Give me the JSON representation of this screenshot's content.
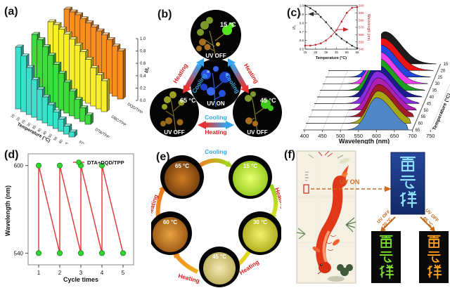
{
  "panels": {
    "a": {
      "label": "(a)"
    },
    "b": {
      "label": "(b)",
      "top": {
        "temp": "15 °C",
        "uv": "UV OFF"
      },
      "center": {
        "uv": "UV ON"
      },
      "left": {
        "temp": "65 °C",
        "uv": "UV OFF"
      },
      "right": {
        "temp": "45 °C",
        "uv": "UV OFF"
      },
      "arrow_left": {
        "outer": "Heating",
        "inner": "Cooling"
      },
      "arrow_right": {
        "outer": "Heating",
        "inner": "Cooling"
      },
      "arrow_bottom": {
        "upper": "Cooling",
        "lower": "Heating"
      },
      "colors": {
        "heating": "#dd2020",
        "cooling": "#2fa8e8"
      }
    },
    "c": {
      "label": "(c)"
    },
    "d": {
      "label": "(d)"
    },
    "e": {
      "label": "(e)",
      "node_65": "65 °C",
      "node_15": "15 °C",
      "node_30": "30 °C",
      "node_45": "45 °C",
      "node_60": "60 °C",
      "arrow_cooling": "Cooling",
      "arrow_heating_1": "Heating",
      "arrow_heating_2": "Heating",
      "arrow_heating_3": "Heating",
      "arrow_heating_4": "Heating",
      "colors": {
        "heating": "#dd2020",
        "cooling": "#2fa8e8"
      }
    },
    "f": {
      "label": "(f)",
      "uv_on": "UV ON",
      "left_arrow_line1": "UV OFF",
      "left_arrow_line2": "20 °C",
      "right_arrow_line1": "UV OFF",
      "right_arrow_line2": "65 °C",
      "calligraphy_text": "雷云祥"
    }
  },
  "chart_data": [
    {
      "panel": "a",
      "type": "bar",
      "projection": "3d",
      "categories": [
        15,
        20,
        25,
        30,
        35,
        40,
        45,
        50,
        55,
        60,
        65
      ],
      "xlabel": "Temperature (°C)",
      "zlabel": "I/I₀",
      "zlim": [
        0.0,
        1.0
      ],
      "zticks": [
        0.0,
        0.2,
        0.4,
        0.6,
        0.8,
        1.0
      ],
      "series": [
        {
          "name": "FDA/TPP",
          "color": "#3be0cb",
          "values": [
            1.0,
            0.9,
            0.76,
            0.61,
            0.5,
            0.42,
            0.34,
            0.27,
            0.2,
            0.13,
            0.08
          ]
        },
        {
          "name": "DTA/TPP",
          "color": "#3cdc3c",
          "values": [
            1.0,
            0.96,
            0.89,
            0.8,
            0.7,
            0.6,
            0.5,
            0.4,
            0.31,
            0.22,
            0.15
          ]
        },
        {
          "name": "DBC/TPP",
          "color": "#f8ef2a",
          "values": [
            1.0,
            1.0,
            0.97,
            0.94,
            0.9,
            0.85,
            0.79,
            0.71,
            0.62,
            0.55,
            0.5
          ]
        },
        {
          "name": "DQD/TPP",
          "color": "#fb8c1e",
          "values": [
            1.0,
            1.0,
            1.0,
            0.98,
            0.96,
            0.94,
            0.92,
            0.9,
            0.87,
            0.81,
            0.78
          ]
        }
      ]
    },
    {
      "panel": "c",
      "type": "area",
      "subtype": "3d-waterfall",
      "xlabel": "Wavelength (nm)",
      "xlim": [
        400,
        780
      ],
      "xticks": [
        400,
        450,
        500,
        550,
        600,
        650,
        700,
        750
      ],
      "ylabel": "Temperature (°C)",
      "series": [
        {
          "temp": 15,
          "peak_nm": 545,
          "color": "#1c1c1c"
        },
        {
          "temp": 20,
          "peak_nm": 546,
          "color": "#e81416"
        },
        {
          "temp": 25,
          "peak_nm": 548,
          "color": "#2147dd"
        },
        {
          "temp": 30,
          "peak_nm": 551,
          "color": "#ee3dee"
        },
        {
          "temp": 35,
          "peak_nm": 556,
          "color": "#1d9e1d"
        },
        {
          "temp": 40,
          "peak_nm": 562,
          "color": "#1b1b8e"
        },
        {
          "temp": 45,
          "peak_nm": 570,
          "color": "#8a2be2"
        },
        {
          "temp": 50,
          "peak_nm": 580,
          "color": "#b020b0"
        },
        {
          "temp": 55,
          "peak_nm": 590,
          "color": "#a01a28"
        },
        {
          "temp": 60,
          "peak_nm": 597,
          "color": "#a6a616"
        },
        {
          "temp": 65,
          "peak_nm": 600,
          "color": "#4f86c6"
        }
      ]
    },
    {
      "panel": "c_inset",
      "type": "line",
      "x": [
        15,
        20,
        25,
        30,
        35,
        40,
        45,
        50,
        55,
        60,
        65
      ],
      "xlabel": "Temperature (°C)",
      "xticks": [
        15,
        25,
        35,
        45,
        55,
        65
      ],
      "left_ylabel": "I/I₀",
      "left_ylim": [
        0.5,
        1.0
      ],
      "left_yticks": [
        0.5,
        0.6,
        0.7,
        0.8,
        0.9,
        1.0
      ],
      "right_ylabel": "Wavelength (nm)",
      "right_ylim": [
        540,
        600
      ],
      "right_yticks": [
        540,
        550,
        560,
        570,
        580,
        590,
        600
      ],
      "series": [
        {
          "name": "I/I₀",
          "axis": "left",
          "color": "#2a2a2a",
          "marker": "square",
          "values": [
            1.0,
            0.97,
            0.93,
            0.87,
            0.81,
            0.74,
            0.67,
            0.62,
            0.58,
            0.54,
            0.51
          ]
        },
        {
          "name": "Wavelength (nm)",
          "axis": "right",
          "color": "#c0272d",
          "marker": "circle",
          "values": [
            545,
            545,
            546,
            548,
            552,
            558,
            566,
            578,
            590,
            597,
            598
          ]
        }
      ]
    },
    {
      "panel": "d",
      "type": "line",
      "xlabel": "Cycle times",
      "ylabel": "Wavelength (nm)",
      "xticks": [
        1,
        2,
        3,
        4,
        5
      ],
      "yticks": [
        540,
        600
      ],
      "ylim": [
        532,
        608
      ],
      "legend": "DTA+DQD/TPP",
      "line_color": "#e23434",
      "marker_color": "#35d435",
      "points": [
        [
          1,
          540
        ],
        [
          1,
          600
        ],
        [
          2,
          540
        ],
        [
          2,
          600
        ],
        [
          3,
          540
        ],
        [
          3,
          600
        ],
        [
          4,
          540
        ],
        [
          4,
          600
        ],
        [
          5,
          540
        ]
      ]
    }
  ]
}
